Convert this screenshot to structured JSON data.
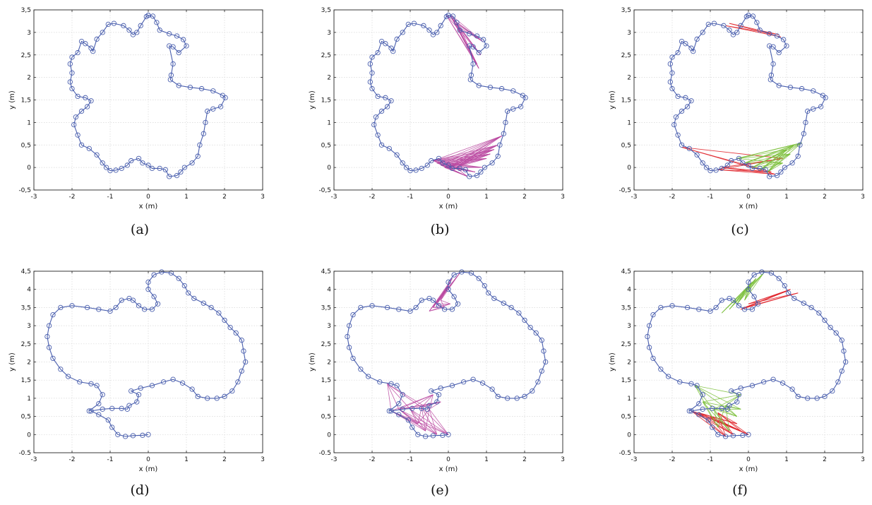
{
  "chart_data": [
    {
      "type": "scatter",
      "panel": "a",
      "caption": "(a)",
      "xlabel": "x (m)",
      "ylabel": "y (m)",
      "xlim": [
        -3,
        3
      ],
      "ylim": [
        -0.5,
        3.5
      ],
      "xticks": [
        "-3",
        "-2",
        "-1",
        "0",
        "1",
        "2",
        "3"
      ],
      "yticks": [
        "-0,5",
        "0",
        "0,5",
        "1",
        "1,5",
        "2",
        "2,5",
        "3",
        "3,5"
      ],
      "grid": true,
      "trajectory": "A",
      "links": []
    },
    {
      "type": "scatter",
      "panel": "b",
      "caption": "(b)",
      "xlabel": "x (m)",
      "ylabel": "y (m)",
      "xlim": [
        -3,
        3
      ],
      "ylim": [
        -0.5,
        3.5
      ],
      "xticks": [
        "-3",
        "-2",
        "-1",
        "0",
        "1",
        "2",
        "3"
      ],
      "yticks": [
        "-0,5",
        "0",
        "0,5",
        "1",
        "1,5",
        "2",
        "2,5",
        "3",
        "3,5"
      ],
      "grid": true,
      "trajectory": "A",
      "links": [
        {
          "color": "#b9459f",
          "from": [
            [
              -0.05,
              3.38
            ],
            [
              0.05,
              3.4
            ],
            [
              0.1,
              3.3
            ],
            [
              0.2,
              3.2
            ],
            [
              0.3,
              3.1
            ]
          ],
          "to": [
            [
              0.8,
              2.2
            ],
            [
              0.85,
              2.5
            ],
            [
              0.9,
              2.8
            ],
            [
              0.75,
              2.3
            ]
          ]
        },
        {
          "color": "#b9459f",
          "from": [
            [
              -0.4,
              0.15
            ],
            [
              -0.3,
              0.1
            ],
            [
              -0.2,
              0.05
            ],
            [
              -0.1,
              0.0
            ],
            [
              0.0,
              0.0
            ],
            [
              0.2,
              0.0
            ]
          ],
          "to": [
            [
              0.5,
              -0.2
            ],
            [
              0.7,
              -0.1
            ],
            [
              1.0,
              0.2
            ],
            [
              1.2,
              0.4
            ],
            [
              1.4,
              0.7
            ],
            [
              1.3,
              0.5
            ],
            [
              1.1,
              0.3
            ],
            [
              0.9,
              0.0
            ]
          ]
        }
      ]
    },
    {
      "type": "scatter",
      "panel": "c",
      "caption": "(c)",
      "xlabel": "x (m)",
      "ylabel": "y (m)",
      "xlim": [
        -3,
        3
      ],
      "ylim": [
        -0.5,
        3.5
      ],
      "xticks": [
        "-3",
        "-2",
        "-1",
        "0",
        "1",
        "2",
        "3"
      ],
      "yticks": [
        "-0,5",
        "0",
        "0,5",
        "1",
        "1,5",
        "2",
        "2,5",
        "3",
        "3,5"
      ],
      "grid": true,
      "trajectory": "A",
      "links": [
        {
          "color": "#e0262d",
          "from": [
            [
              -0.6,
              3.15
            ],
            [
              -0.5,
              3.2
            ]
          ],
          "to": [
            [
              0.85,
              2.9
            ],
            [
              0.8,
              2.95
            ]
          ]
        },
        {
          "color": "#e0262d",
          "from": [
            [
              -1.75,
              0.45
            ],
            [
              -0.7,
              0.0
            ],
            [
              -0.8,
              -0.05
            ]
          ],
          "to": [
            [
              0.9,
              0.2
            ],
            [
              0.6,
              -0.1
            ],
            [
              0.7,
              -0.15
            ]
          ]
        },
        {
          "color": "#7bbf3a",
          "from": [
            [
              -0.3,
              0.2
            ],
            [
              -0.1,
              0.1
            ],
            [
              0.1,
              0.0
            ],
            [
              0.3,
              -0.05
            ],
            [
              0.5,
              -0.1
            ]
          ],
          "to": [
            [
              1.0,
              0.4
            ],
            [
              1.2,
              0.5
            ],
            [
              1.4,
              0.55
            ],
            [
              1.1,
              0.3
            ],
            [
              0.9,
              0.1
            ]
          ]
        }
      ]
    },
    {
      "type": "scatter",
      "panel": "d",
      "caption": "(d)",
      "xlabel": "x (m)",
      "ylabel": "y (m)",
      "xlim": [
        -3,
        3
      ],
      "ylim": [
        -0.5,
        4.5
      ],
      "xticks": [
        "-3",
        "-2",
        "-1",
        "0",
        "1",
        "2",
        "3"
      ],
      "yticks": [
        "-0.5",
        "0",
        "0,5",
        "1",
        "1,5",
        "2",
        "2,5",
        "3",
        "3,5",
        "4",
        "4,5"
      ],
      "grid": true,
      "trajectory": "B",
      "links": []
    },
    {
      "type": "scatter",
      "panel": "e",
      "caption": "(e)",
      "xlabel": "x (m)",
      "ylabel": "y (m)",
      "xlim": [
        -3,
        3
      ],
      "ylim": [
        -0.5,
        4.5
      ],
      "xticks": [
        "-3",
        "-2",
        "-1",
        "0",
        "1",
        "2",
        "3"
      ],
      "yticks": [
        "-0.5",
        "0",
        "0,5",
        "1",
        "1,5",
        "2",
        "2,5",
        "3",
        "3,5",
        "4",
        "4,5"
      ],
      "grid": true,
      "trajectory": "B",
      "links": [
        {
          "color": "#b9459f",
          "from": [
            [
              -0.5,
              3.4
            ],
            [
              -0.4,
              3.5
            ],
            [
              -0.3,
              3.6
            ],
            [
              -0.2,
              3.7
            ]
          ],
          "to": [
            [
              0.0,
              4.1
            ],
            [
              0.1,
              4.3
            ],
            [
              0.3,
              4.45
            ],
            [
              -0.1,
              3.5
            ],
            [
              0.05,
              3.6
            ]
          ]
        },
        {
          "color": "#b9459f",
          "from": [
            [
              -1.5,
              0.65
            ],
            [
              -1.3,
              0.7
            ],
            [
              -1.0,
              0.7
            ],
            [
              -0.7,
              0.75
            ],
            [
              -0.5,
              0.7
            ]
          ],
          "to": [
            [
              -0.8,
              0.3
            ],
            [
              -0.6,
              0.1
            ],
            [
              -0.3,
              0.0
            ],
            [
              0.0,
              0.0
            ],
            [
              -0.4,
              1.1
            ],
            [
              -0.2,
              0.9
            ],
            [
              -1.6,
              1.4
            ]
          ]
        }
      ]
    },
    {
      "type": "scatter",
      "panel": "f",
      "caption": "(f)",
      "xlabel": "x (m)",
      "ylabel": "y (m)",
      "xlim": [
        -3,
        3
      ],
      "ylim": [
        -0.5,
        4.5
      ],
      "xticks": [
        "-3",
        "-2",
        "-1",
        "0",
        "1",
        "2",
        "3"
      ],
      "yticks": [
        "-0.5",
        "0",
        "0,5",
        "1",
        "1,5",
        "2",
        "2,5",
        "3",
        "3,5",
        "4",
        "4,5"
      ],
      "grid": true,
      "trajectory": "B",
      "links": [
        {
          "color": "#e0262d",
          "from": [
            [
              -0.2,
              3.45
            ],
            [
              0.0,
              3.6
            ],
            [
              -0.1,
              3.5
            ]
          ],
          "to": [
            [
              1.3,
              3.9
            ],
            [
              1.1,
              4.0
            ],
            [
              1.0,
              3.95
            ]
          ]
        },
        {
          "color": "#7bbf3a",
          "from": [
            [
              -0.7,
              3.35
            ],
            [
              -0.5,
              3.45
            ],
            [
              -0.3,
              3.6
            ],
            [
              -0.1,
              3.7
            ]
          ],
          "to": [
            [
              0.0,
              4.1
            ],
            [
              0.2,
              4.3
            ],
            [
              0.4,
              4.45
            ],
            [
              0.1,
              4.2
            ]
          ]
        },
        {
          "color": "#e0262d",
          "from": [
            [
              -1.5,
              0.65
            ],
            [
              -1.3,
              0.6
            ],
            [
              -1.0,
              0.5
            ],
            [
              -0.8,
              0.6
            ]
          ],
          "to": [
            [
              -0.4,
              0.0
            ],
            [
              -0.2,
              0.1
            ],
            [
              0.0,
              0.0
            ],
            [
              -0.6,
              -0.05
            ],
            [
              -0.3,
              0.3
            ]
          ]
        },
        {
          "color": "#7bbf3a",
          "from": [
            [
              -1.4,
              1.35
            ],
            [
              -1.2,
              0.9
            ],
            [
              -0.9,
              0.7
            ],
            [
              -0.6,
              0.8
            ]
          ],
          "to": [
            [
              -0.5,
              0.1
            ],
            [
              -0.3,
              0.5
            ],
            [
              -0.2,
              0.7
            ],
            [
              -0.8,
              0.2
            ],
            [
              -0.2,
              1.1
            ]
          ]
        }
      ]
    }
  ],
  "trajectories": {
    "A": [
      [
        0.0,
        3.38
      ],
      [
        0.12,
        3.36
      ],
      [
        0.22,
        3.22
      ],
      [
        0.3,
        3.05
      ],
      [
        0.55,
        2.97
      ],
      [
        0.75,
        2.92
      ],
      [
        0.92,
        2.84
      ],
      [
        1.0,
        2.7
      ],
      [
        0.8,
        2.55
      ],
      [
        0.65,
        2.68
      ],
      [
        0.55,
        2.7
      ],
      [
        0.65,
        2.3
      ],
      [
        0.6,
        2.05
      ],
      [
        0.58,
        1.95
      ],
      [
        0.8,
        1.82
      ],
      [
        1.1,
        1.78
      ],
      [
        1.4,
        1.75
      ],
      [
        1.7,
        1.7
      ],
      [
        1.95,
        1.6
      ],
      [
        2.02,
        1.55
      ],
      [
        1.9,
        1.35
      ],
      [
        1.7,
        1.3
      ],
      [
        1.55,
        1.25
      ],
      [
        1.5,
        1.0
      ],
      [
        1.45,
        0.75
      ],
      [
        1.35,
        0.5
      ],
      [
        1.3,
        0.25
      ],
      [
        1.15,
        0.1
      ],
      [
        0.95,
        0.0
      ],
      [
        0.85,
        -0.1
      ],
      [
        0.75,
        -0.18
      ],
      [
        0.55,
        -0.2
      ],
      [
        0.45,
        -0.05
      ],
      [
        0.3,
        -0.02
      ],
      [
        0.1,
        -0.02
      ],
      [
        0.0,
        0.05
      ],
      [
        -0.15,
        0.1
      ],
      [
        -0.25,
        0.2
      ],
      [
        -0.45,
        0.15
      ],
      [
        -0.55,
        0.05
      ],
      [
        -0.7,
        -0.02
      ],
      [
        -0.85,
        -0.06
      ],
      [
        -1.0,
        -0.07
      ],
      [
        -1.1,
        0.0
      ],
      [
        -1.2,
        0.1
      ],
      [
        -1.35,
        0.28
      ],
      [
        -1.55,
        0.42
      ],
      [
        -1.75,
        0.5
      ],
      [
        -1.85,
        0.72
      ],
      [
        -1.95,
        0.95
      ],
      [
        -1.9,
        1.12
      ],
      [
        -1.75,
        1.25
      ],
      [
        -1.6,
        1.35
      ],
      [
        -1.5,
        1.48
      ],
      [
        -1.65,
        1.55
      ],
      [
        -1.85,
        1.58
      ],
      [
        -2.0,
        1.75
      ],
      [
        -2.05,
        1.9
      ],
      [
        -2.0,
        2.1
      ],
      [
        -2.05,
        2.3
      ],
      [
        -2.0,
        2.45
      ],
      [
        -1.85,
        2.55
      ],
      [
        -1.75,
        2.8
      ],
      [
        -1.65,
        2.75
      ],
      [
        -1.5,
        2.65
      ],
      [
        -1.45,
        2.58
      ],
      [
        -1.35,
        2.85
      ],
      [
        -1.2,
        3.0
      ],
      [
        -1.05,
        3.18
      ],
      [
        -0.9,
        3.2
      ],
      [
        -0.65,
        3.15
      ],
      [
        -0.5,
        3.05
      ],
      [
        -0.4,
        2.95
      ],
      [
        -0.3,
        3.0
      ],
      [
        -0.2,
        3.15
      ],
      [
        -0.05,
        3.35
      ],
      [
        0.0,
        3.38
      ]
    ],
    "B": [
      [
        0.0,
        0.0
      ],
      [
        -0.15,
        -0.02
      ],
      [
        -0.4,
        -0.03
      ],
      [
        -0.6,
        -0.05
      ],
      [
        -0.8,
        0.0
      ],
      [
        -0.95,
        0.2
      ],
      [
        -1.05,
        0.4
      ],
      [
        -1.3,
        0.55
      ],
      [
        -1.5,
        0.65
      ],
      [
        -1.2,
        0.7
      ],
      [
        -0.95,
        0.72
      ],
      [
        -0.7,
        0.72
      ],
      [
        -0.55,
        0.7
      ],
      [
        -0.5,
        0.8
      ],
      [
        -0.3,
        0.9
      ],
      [
        -0.25,
        1.1
      ],
      [
        -0.45,
        1.2
      ],
      [
        -0.2,
        1.28
      ],
      [
        0.1,
        1.35
      ],
      [
        0.4,
        1.45
      ],
      [
        0.65,
        1.52
      ],
      [
        0.9,
        1.42
      ],
      [
        1.15,
        1.25
      ],
      [
        1.3,
        1.05
      ],
      [
        1.55,
        1.0
      ],
      [
        1.8,
        1.0
      ],
      [
        2.0,
        1.05
      ],
      [
        2.2,
        1.2
      ],
      [
        2.35,
        1.45
      ],
      [
        2.45,
        1.75
      ],
      [
        2.55,
        2.0
      ],
      [
        2.5,
        2.3
      ],
      [
        2.45,
        2.6
      ],
      [
        2.3,
        2.8
      ],
      [
        2.15,
        2.95
      ],
      [
        2.0,
        3.15
      ],
      [
        1.85,
        3.35
      ],
      [
        1.65,
        3.5
      ],
      [
        1.45,
        3.62
      ],
      [
        1.2,
        3.75
      ],
      [
        1.05,
        3.9
      ],
      [
        0.95,
        4.1
      ],
      [
        0.8,
        4.3
      ],
      [
        0.6,
        4.45
      ],
      [
        0.35,
        4.48
      ],
      [
        0.15,
        4.4
      ],
      [
        0.0,
        4.2
      ],
      [
        0.0,
        4.0
      ],
      [
        0.15,
        3.8
      ],
      [
        0.25,
        3.6
      ],
      [
        0.1,
        3.45
      ],
      [
        -0.1,
        3.45
      ],
      [
        -0.25,
        3.55
      ],
      [
        -0.4,
        3.7
      ],
      [
        -0.5,
        3.75
      ],
      [
        -0.7,
        3.7
      ],
      [
        -0.85,
        3.5
      ],
      [
        -1.0,
        3.4
      ],
      [
        -1.3,
        3.45
      ],
      [
        -1.6,
        3.5
      ],
      [
        -2.0,
        3.55
      ],
      [
        -2.3,
        3.5
      ],
      [
        -2.5,
        3.3
      ],
      [
        -2.6,
        3.0
      ],
      [
        -2.65,
        2.7
      ],
      [
        -2.6,
        2.4
      ],
      [
        -2.5,
        2.1
      ],
      [
        -2.3,
        1.8
      ],
      [
        -2.1,
        1.6
      ],
      [
        -1.8,
        1.45
      ],
      [
        -1.5,
        1.4
      ],
      [
        -1.35,
        1.35
      ],
      [
        -1.2,
        1.1
      ],
      [
        -1.3,
        0.85
      ],
      [
        -1.55,
        0.65
      ]
    ]
  }
}
